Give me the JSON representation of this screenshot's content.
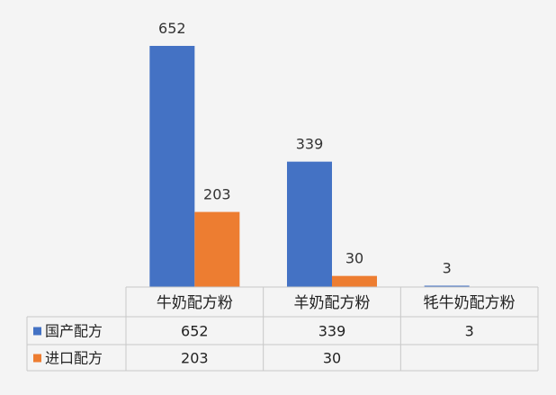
{
  "chart_data": {
    "type": "bar",
    "categories": [
      "牛奶配方粉",
      "羊奶配方粉",
      "牦牛奶配方粉"
    ],
    "series": [
      {
        "name": "国产配方",
        "values": [
          652,
          339,
          3
        ],
        "color": "#4472c4"
      },
      {
        "name": "进口配方",
        "values": [
          203,
          30,
          null
        ],
        "color": "#ed7d31"
      }
    ],
    "data_labels": true,
    "data_table": true,
    "legend": "data-table",
    "ylim": [
      0,
      700
    ]
  }
}
